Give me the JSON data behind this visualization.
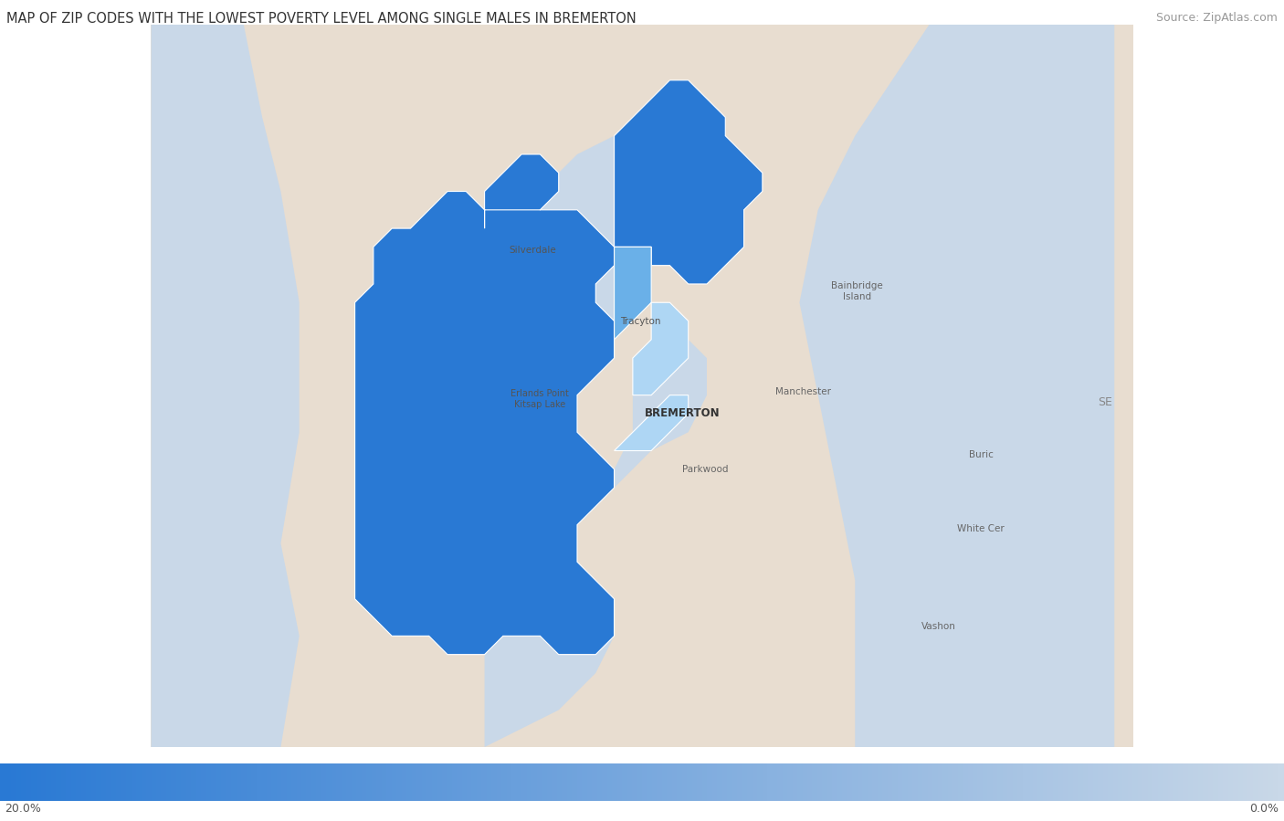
{
  "title": "MAP OF ZIP CODES WITH THE LOWEST POVERTY LEVEL AMONG SINGLE MALES IN BREMERTON",
  "source_text": "Source: ZipAtlas.com",
  "title_fontsize": 10.5,
  "source_fontsize": 9,
  "title_color": "#333333",
  "background_color": "#ffffff",
  "land_color": "#e8ddd0",
  "water_color": "#c9d8e8",
  "legend_left_label": "20.0%",
  "legend_right_label": "0.0%",
  "place_labels": [
    {
      "name": "Silverdale",
      "lon": -122.694,
      "lat": 47.648,
      "size": 7.5,
      "color": "#555555",
      "bold": false
    },
    {
      "name": "Tracyton",
      "lon": -122.636,
      "lat": 47.61,
      "size": 7.5,
      "color": "#555555",
      "bold": false
    },
    {
      "name": "Erlands Point\nKitsap Lake",
      "lon": -122.69,
      "lat": 47.568,
      "size": 7,
      "color": "#555555",
      "bold": false
    },
    {
      "name": "BREMERTON",
      "lon": -122.613,
      "lat": 47.56,
      "size": 8.5,
      "color": "#333333",
      "bold": true
    },
    {
      "name": "Bainbridge\nIsland",
      "lon": -122.519,
      "lat": 47.626,
      "size": 7.5,
      "color": "#666666",
      "bold": false
    },
    {
      "name": "Manchester",
      "lon": -122.548,
      "lat": 47.572,
      "size": 7.5,
      "color": "#666666",
      "bold": false
    },
    {
      "name": "Parkwood",
      "lon": -122.601,
      "lat": 47.53,
      "size": 7.5,
      "color": "#666666",
      "bold": false
    },
    {
      "name": "White Cer",
      "lon": -122.452,
      "lat": 47.498,
      "size": 7.5,
      "color": "#666666",
      "bold": false
    },
    {
      "name": "Vashon",
      "lon": -122.475,
      "lat": 47.445,
      "size": 7.5,
      "color": "#666666",
      "bold": false
    },
    {
      "name": "Buric",
      "lon": -122.452,
      "lat": 47.538,
      "size": 7.5,
      "color": "#666666",
      "bold": false
    },
    {
      "name": "SE",
      "lon": -122.385,
      "lat": 47.566,
      "size": 9,
      "color": "#888888",
      "bold": false
    }
  ]
}
